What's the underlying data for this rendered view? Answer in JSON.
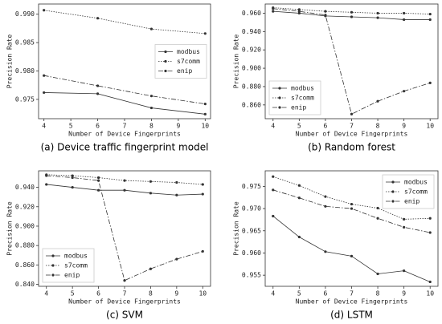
{
  "chart_data": [
    {
      "type": "line",
      "caption": "(a) Device traffic fingerprint model",
      "xlabel": "Number of Device Fingerprints",
      "ylabel": "Precision Rate",
      "x": [
        4,
        6,
        8,
        10
      ],
      "xlim": [
        3.8,
        10.2
      ],
      "xticks": [
        4,
        5,
        6,
        7,
        8,
        9,
        10
      ],
      "ylim": [
        0.9716,
        0.9918
      ],
      "yticks": [
        0.975,
        {
          "value": 0.98,
          "label": "0.980"
        },
        0.985,
        {
          "value": 0.99,
          "label": "0.990"
        }
      ],
      "legend": "center right",
      "series": [
        {
          "name": "modbus",
          "color": "#333333",
          "style": "solid",
          "values": [
            0.9762,
            0.976,
            0.9735,
            0.9724
          ]
        },
        {
          "name": "s7comm",
          "color": "#333333",
          "style": "dotted",
          "values": [
            0.9907,
            0.9893,
            0.9874,
            0.9866
          ]
        },
        {
          "name": "enip",
          "color": "#333333",
          "style": "dashdot",
          "values": [
            0.9792,
            0.9774,
            0.9756,
            0.9742
          ]
        }
      ]
    },
    {
      "type": "line",
      "caption": "(b) Random forest",
      "xlabel": "Number of Device Fingerprints",
      "ylabel": "Precision Rate",
      "x": [
        4,
        5,
        6,
        7,
        8,
        9,
        10
      ],
      "xlim": [
        3.7,
        10.3
      ],
      "xticks": [
        4,
        5,
        6,
        7,
        8,
        9,
        10
      ],
      "ylim": [
        0.845,
        0.97
      ],
      "yticks": [
        {
          "value": 0.86,
          "label": "0.860"
        },
        {
          "value": 0.88,
          "label": "0.880"
        },
        {
          "value": 0.9,
          "label": "0.900"
        },
        {
          "value": 0.92,
          "label": "0.920"
        },
        {
          "value": 0.94,
          "label": "0.940"
        },
        {
          "value": 0.96,
          "label": "0.960"
        }
      ],
      "legend": "lower left",
      "series": [
        {
          "name": "modbus",
          "color": "#333333",
          "style": "solid",
          "values": [
            0.962,
            0.96,
            0.957,
            0.956,
            0.955,
            0.953,
            0.953
          ]
        },
        {
          "name": "s7comm",
          "color": "#333333",
          "style": "dotted",
          "values": [
            0.966,
            0.964,
            0.962,
            0.961,
            0.96,
            0.96,
            0.959
          ]
        },
        {
          "name": "enip",
          "color": "#333333",
          "style": "dashdot",
          "values": [
            0.965,
            0.962,
            0.958,
            0.85,
            0.864,
            0.875,
            0.884
          ]
        }
      ]
    },
    {
      "type": "line",
      "caption": "(c) SVM",
      "xlabel": "Number of Device Fingerprints",
      "ylabel": "Precision Rate",
      "x": [
        4,
        5,
        6,
        7,
        8,
        9,
        10
      ],
      "xlim": [
        3.7,
        10.3
      ],
      "xticks": [
        4,
        5,
        6,
        7,
        8,
        9,
        10
      ],
      "ylim": [
        0.838,
        0.957
      ],
      "yticks": [
        {
          "value": 0.84,
          "label": "0.840"
        },
        {
          "value": 0.86,
          "label": "0.860"
        },
        {
          "value": 0.88,
          "label": "0.880"
        },
        {
          "value": 0.9,
          "label": "0.900"
        },
        {
          "value": 0.92,
          "label": "0.920"
        },
        {
          "value": 0.94,
          "label": "0.940"
        }
      ],
      "legend": "lower left",
      "series": [
        {
          "name": "modbus",
          "color": "#333333",
          "style": "solid",
          "values": [
            0.943,
            0.94,
            0.937,
            0.937,
            0.934,
            0.932,
            0.933
          ]
        },
        {
          "name": "s7comm",
          "color": "#333333",
          "style": "dotted",
          "values": [
            0.953,
            0.952,
            0.95,
            0.947,
            0.946,
            0.945,
            0.943
          ]
        },
        {
          "name": "enip",
          "color": "#333333",
          "style": "dashdot",
          "values": [
            0.952,
            0.95,
            0.947,
            0.844,
            0.856,
            0.866,
            0.874
          ]
        }
      ]
    },
    {
      "type": "line",
      "caption": "(d) LSTM",
      "xlabel": "Number of Device Fingerprints",
      "ylabel": "Precision Rate",
      "x": [
        4,
        5,
        6,
        7,
        8,
        9,
        10
      ],
      "xlim": [
        3.7,
        10.3
      ],
      "xticks": [
        4,
        5,
        6,
        7,
        8,
        9,
        10
      ],
      "ylim": [
        0.9525,
        0.9785
      ],
      "yticks": [
        0.955,
        {
          "value": 0.96,
          "label": "0.960"
        },
        0.965,
        {
          "value": 0.97,
          "label": "0.970"
        },
        0.975
      ],
      "legend": "upper right",
      "series": [
        {
          "name": "modbus",
          "color": "#333333",
          "style": "solid",
          "values": [
            0.9683,
            0.9636,
            0.9603,
            0.9593,
            0.9553,
            0.956,
            0.9535
          ]
        },
        {
          "name": "s7comm",
          "color": "#333333",
          "style": "dotted",
          "values": [
            0.9772,
            0.9752,
            0.9727,
            0.971,
            0.9701,
            0.9676,
            0.9678
          ]
        },
        {
          "name": "enip",
          "color": "#333333",
          "style": "dashdot",
          "values": [
            0.9742,
            0.9724,
            0.9705,
            0.97,
            0.9678,
            0.9658,
            0.9646
          ]
        }
      ]
    }
  ]
}
